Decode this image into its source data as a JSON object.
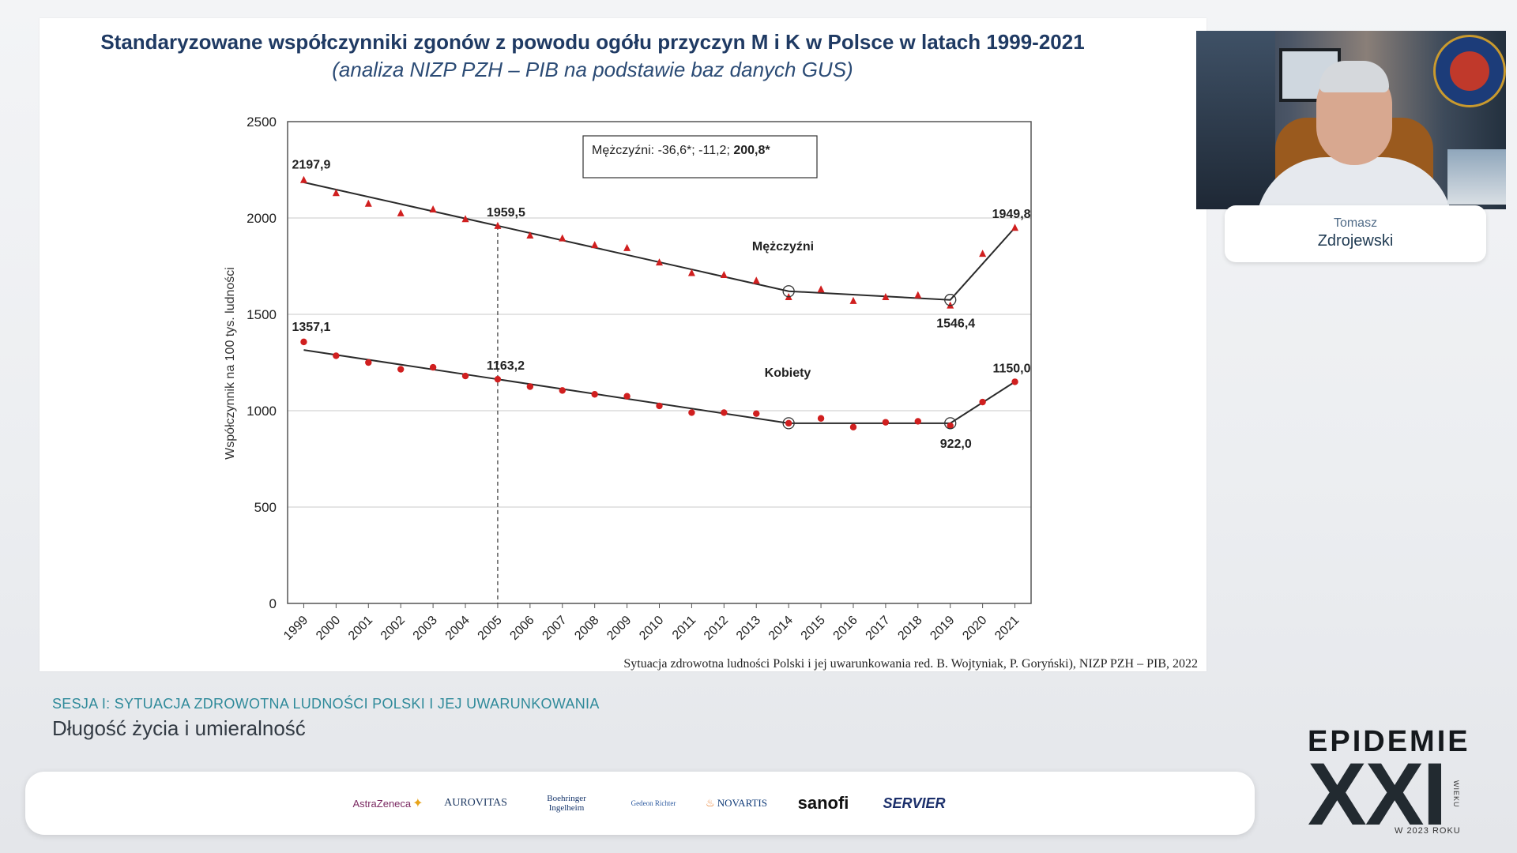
{
  "slide": {
    "title": "Standaryzowane współczynniki zgonów z powodu ogółu przyczyn M i K w Polsce w latach 1999-2021",
    "subtitle": "(analiza NIZP PZH – PIB na podstawie baz danych GUS)",
    "source": "Sytuacja zdrowotna ludności Polski i jej uwarunkowania red. B. Wojtyniak, P. Goryński), NIZP PZH – PIB, 2022"
  },
  "chart_data": {
    "type": "scatter",
    "title": "Standaryzowane współczynniki zgonów z powodu ogółu przyczyn M i K w Polsce w latach 1999-2021",
    "ylabel": "Współczynnik na 100 tys. ludności",
    "xlabel": "",
    "ylim": [
      0,
      2500
    ],
    "yticks": [
      0,
      500,
      1000,
      1500,
      2000,
      2500
    ],
    "categories": [
      "1999",
      "2000",
      "2001",
      "2002",
      "2003",
      "2004",
      "2005",
      "2006",
      "2007",
      "2008",
      "2009",
      "2010",
      "2011",
      "2012",
      "2013",
      "2014",
      "2015",
      "2016",
      "2017",
      "2018",
      "2019",
      "2020",
      "2021"
    ],
    "grid": true,
    "legend_box_prefix": "Mężczyźni: -36,6*; -11,2; ",
    "legend_box_bold": "200,8*",
    "reference_line_year": "2005",
    "series": [
      {
        "name": "Mężczyźni",
        "marker": "triangle",
        "color": "#d01f1f",
        "values": [
          2197.9,
          2130,
          2075,
          2025,
          2045,
          1995,
          1959.5,
          1910,
          1895,
          1860,
          1845,
          1770,
          1715,
          1705,
          1675,
          1590,
          1630,
          1570,
          1590,
          1600,
          1546.4,
          1815,
          1949.8
        ],
        "trend": [
          [
            0,
            2185
          ],
          [
            6,
            1959.5
          ],
          [
            15,
            1620
          ],
          [
            20,
            1575
          ],
          [
            22,
            1949.8
          ]
        ],
        "break_years": [
          "2014",
          "2019"
        ],
        "point_labels": [
          {
            "year": "1999",
            "text": "2197,9"
          },
          {
            "year": "2005",
            "text": "1959,5"
          },
          {
            "year": "2019",
            "text": "1546,4"
          },
          {
            "year": "2021",
            "text": "1949,8"
          }
        ]
      },
      {
        "name": "Kobiety",
        "marker": "circle",
        "color": "#d01f1f",
        "values": [
          1357.1,
          1285,
          1250,
          1215,
          1225,
          1180,
          1163.2,
          1125,
          1105,
          1085,
          1075,
          1025,
          990,
          990,
          985,
          935,
          960,
          915,
          940,
          945,
          922.0,
          1045,
          1150.0
        ],
        "trend": [
          [
            0,
            1315
          ],
          [
            6,
            1163.2
          ],
          [
            15,
            935
          ],
          [
            20,
            935
          ],
          [
            22,
            1150.0
          ]
        ],
        "break_years": [
          "2014",
          "2019"
        ],
        "point_labels": [
          {
            "year": "1999",
            "text": "1357,1"
          },
          {
            "year": "2005",
            "text": "1163,2"
          },
          {
            "year": "2019",
            "text": "922,0"
          },
          {
            "year": "2021",
            "text": "1150,0"
          }
        ]
      }
    ]
  },
  "speaker": {
    "first_name": "Tomasz",
    "last_name": "Zdrojewski"
  },
  "session": {
    "label": "SESJA I: SYTUACJA ZDROWOTNA LUDNOŚCI POLSKI I JEJ UWARUNKOWANIA",
    "title": "Długość życia i umieralność"
  },
  "sponsors": [
    "AstraZeneca",
    "AUROVITAS",
    "Boehringer Ingelheim",
    "Gedeon Richter",
    "NOVARTIS",
    "sanofi",
    "SERVIER"
  ],
  "brand": {
    "word": "EPIDEMIE",
    "numeral": "XXI",
    "year_text": "W 2023 ROKU",
    "vertical_text": "WIEKU"
  }
}
